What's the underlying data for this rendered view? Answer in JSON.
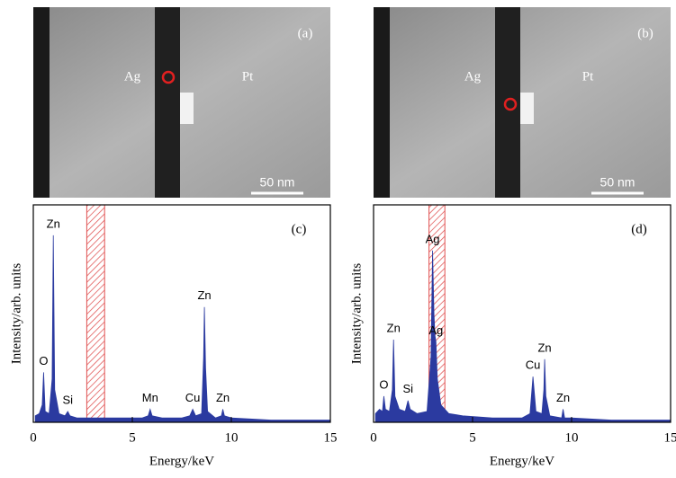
{
  "chart_data": [
    {
      "type": "area",
      "panel": "(c)",
      "xlabel": "Energy/keV",
      "ylabel": "Intensity/arb. units",
      "color": "#2b3aa0",
      "highlight": [
        2.7,
        3.6
      ],
      "highlight_color": "#e05050",
      "xlim": [
        0,
        15
      ],
      "xticks": [
        0,
        5,
        10,
        15
      ],
      "ylim": [
        0,
        100
      ],
      "x": [
        0.1,
        0.3,
        0.45,
        0.52,
        0.6,
        0.8,
        0.95,
        1.01,
        1.08,
        1.3,
        1.6,
        1.74,
        1.85,
        2.2,
        2.8,
        3.5,
        4.5,
        5.5,
        5.8,
        5.9,
        6.0,
        6.5,
        7.5,
        7.9,
        8.05,
        8.2,
        8.5,
        8.6,
        8.64,
        8.7,
        8.8,
        9.2,
        9.5,
        9.57,
        9.65,
        10,
        12,
        15
      ],
      "values": [
        3,
        4,
        8,
        23,
        5,
        4,
        20,
        86,
        15,
        4,
        3,
        5,
        3,
        2,
        2,
        2,
        2,
        2,
        3,
        6,
        3,
        2,
        2,
        3,
        6,
        3,
        4,
        30,
        53,
        25,
        5,
        2,
        3,
        6,
        3,
        2,
        1,
        1
      ],
      "annotations": [
        {
          "text": "O",
          "x": 0.52
        },
        {
          "text": "Zn",
          "x": 1.01
        },
        {
          "text": "Si",
          "x": 1.74
        },
        {
          "text": "Mn",
          "x": 5.9
        },
        {
          "text": "Cu",
          "x": 8.05
        },
        {
          "text": "Zn",
          "x": 8.64
        },
        {
          "text": "Zn",
          "x": 9.57
        }
      ]
    },
    {
      "type": "area",
      "panel": "(d)",
      "xlabel": "Energy/keV",
      "ylabel": "Intensity/arb. units",
      "color": "#2b3aa0",
      "highlight": [
        2.8,
        3.6
      ],
      "highlight_color": "#e05050",
      "xlim": [
        0,
        15
      ],
      "xticks": [
        0,
        5,
        10,
        15
      ],
      "ylim": [
        0,
        100
      ],
      "x": [
        0.1,
        0.3,
        0.45,
        0.52,
        0.6,
        0.8,
        0.95,
        1.01,
        1.08,
        1.3,
        1.6,
        1.74,
        1.85,
        2.2,
        2.7,
        2.9,
        2.98,
        3.05,
        3.1,
        3.15,
        3.22,
        3.4,
        3.8,
        4.5,
        6,
        7.5,
        7.9,
        8.05,
        8.2,
        8.5,
        8.6,
        8.64,
        8.7,
        8.9,
        9.5,
        9.57,
        9.65,
        10,
        12,
        15
      ],
      "values": [
        4,
        6,
        5,
        12,
        6,
        5,
        15,
        38,
        12,
        6,
        5,
        10,
        6,
        4,
        5,
        30,
        79,
        50,
        40,
        37,
        20,
        8,
        4,
        3,
        2,
        2,
        4,
        21,
        5,
        4,
        15,
        29,
        12,
        3,
        2,
        6,
        2,
        2,
        1,
        1
      ],
      "annotations": [
        {
          "text": "O",
          "x": 0.52
        },
        {
          "text": "Zn",
          "x": 1.01
        },
        {
          "text": "Si",
          "x": 1.74
        },
        {
          "text": "Ag",
          "x": 2.98
        },
        {
          "text": "Ag",
          "x": 3.15
        },
        {
          "text": "Cu",
          "x": 8.05
        },
        {
          "text": "Zn",
          "x": 8.64
        },
        {
          "text": "Zn",
          "x": 9.57
        }
      ]
    }
  ],
  "images": [
    {
      "panel": "(a)",
      "left_region": "Ag",
      "right_region": "Pt",
      "scale_bar": "50 nm"
    },
    {
      "panel": "(b)",
      "left_region": "Ag",
      "right_region": "Pt",
      "scale_bar": "50 nm"
    }
  ]
}
